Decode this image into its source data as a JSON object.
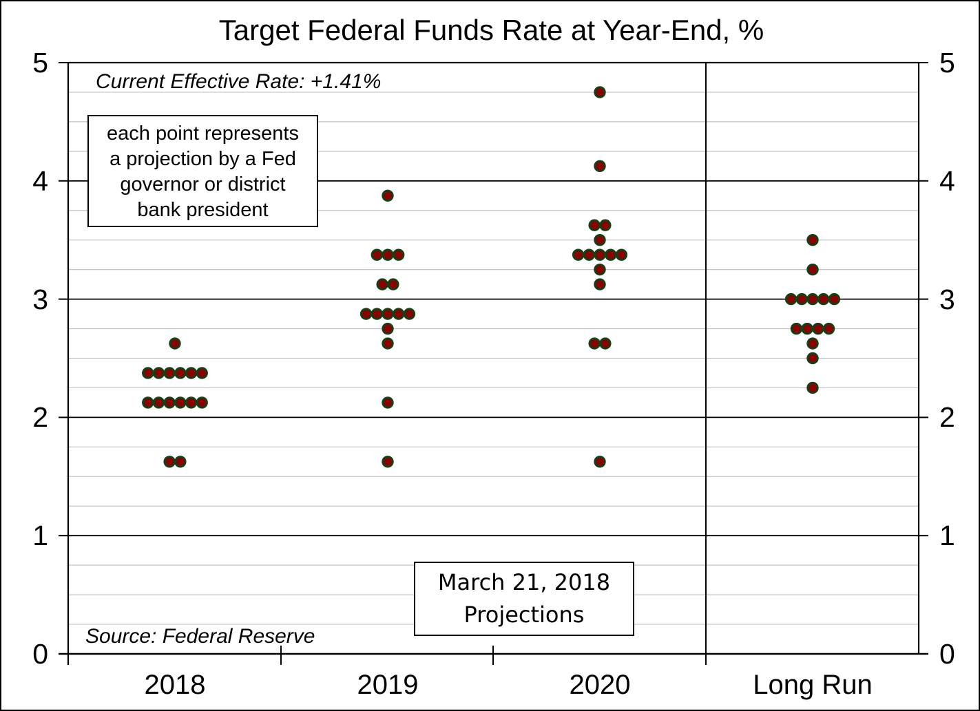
{
  "chart_data": {
    "type": "scatter",
    "title": "Target Federal Funds Rate at Year-End, %",
    "xlabel": "",
    "ylabel": "",
    "ylim": [
      0,
      5
    ],
    "y_tick_step": 1,
    "y_minor_grid_step": 0.25,
    "grid": "on",
    "y_tick_labels": [
      "5",
      "4",
      "3",
      "2",
      "1",
      "0"
    ],
    "categories": [
      "2018",
      "2019",
      "2020",
      "Long Run"
    ],
    "separator_before_category": "Long Run",
    "dot_color": "#8b0000",
    "dot_border_color": "#153f15",
    "series": [
      {
        "name": "2018",
        "points": [
          {
            "value": 2.625,
            "count": 1
          },
          {
            "value": 2.375,
            "count": 6
          },
          {
            "value": 2.125,
            "count": 6
          },
          {
            "value": 1.625,
            "count": 2
          }
        ]
      },
      {
        "name": "2019",
        "points": [
          {
            "value": 3.875,
            "count": 1
          },
          {
            "value": 3.375,
            "count": 3
          },
          {
            "value": 3.125,
            "count": 2
          },
          {
            "value": 2.875,
            "count": 5
          },
          {
            "value": 2.75,
            "count": 1
          },
          {
            "value": 2.625,
            "count": 1
          },
          {
            "value": 2.125,
            "count": 1
          },
          {
            "value": 1.625,
            "count": 1
          }
        ]
      },
      {
        "name": "2020",
        "points": [
          {
            "value": 4.75,
            "count": 1
          },
          {
            "value": 4.125,
            "count": 1
          },
          {
            "value": 3.625,
            "count": 2
          },
          {
            "value": 3.5,
            "count": 1
          },
          {
            "value": 3.375,
            "count": 5
          },
          {
            "value": 3.25,
            "count": 1
          },
          {
            "value": 3.125,
            "count": 1
          },
          {
            "value": 2.625,
            "count": 2
          },
          {
            "value": 1.625,
            "count": 1
          }
        ]
      },
      {
        "name": "Long Run",
        "points": [
          {
            "value": 3.5,
            "count": 1
          },
          {
            "value": 3.25,
            "count": 1
          },
          {
            "value": 3.0,
            "count": 5
          },
          {
            "value": 2.75,
            "count": 4
          },
          {
            "value": 2.625,
            "count": 1
          },
          {
            "value": 2.5,
            "count": 1
          },
          {
            "value": 2.25,
            "count": 1
          }
        ]
      }
    ]
  },
  "annotations": {
    "effective_rate": "Current Effective Rate: +1.41%",
    "note_box_lines": [
      "each point represents",
      "a projection by a Fed",
      "governor or district",
      "bank president"
    ],
    "projections_box_lines": [
      "March 21, 2018",
      "Projections"
    ],
    "source": "Source: Federal Reserve"
  }
}
